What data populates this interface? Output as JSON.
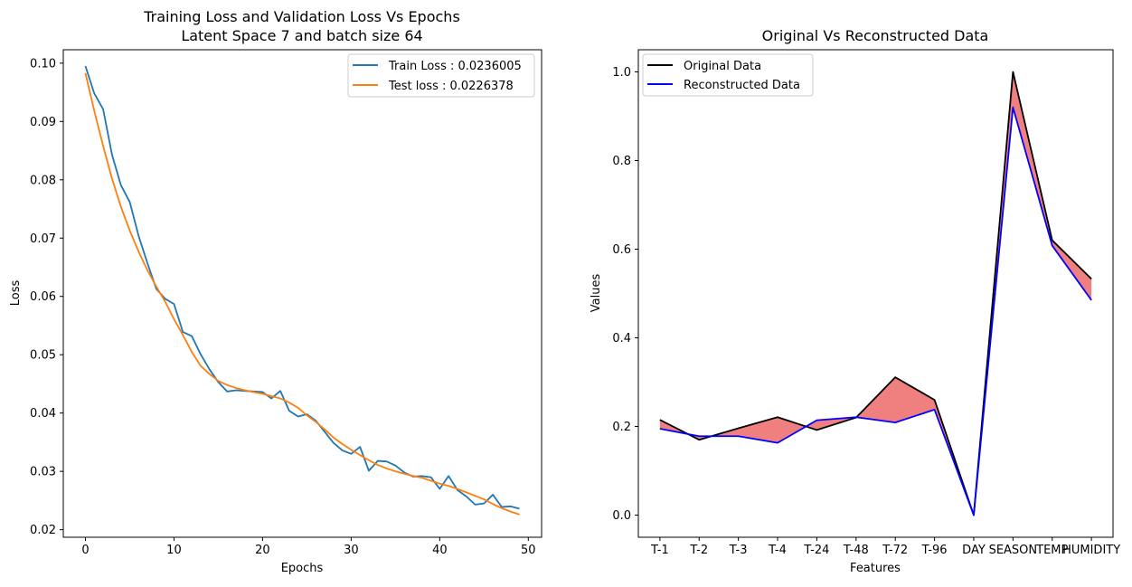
{
  "chart_data": [
    {
      "type": "line",
      "title": "Training Loss and Validation Loss Vs Epochs",
      "subtitle": "Latent Space 7 and batch size 64",
      "xlabel": "Epochs",
      "ylabel": "Loss",
      "xlim": [
        -2.5,
        51.5
      ],
      "ylim": [
        0.0187,
        0.1023
      ],
      "xticks": [
        0,
        10,
        20,
        30,
        40,
        50
      ],
      "xtick_labels": [
        "0",
        "10",
        "20",
        "30",
        "40",
        "50"
      ],
      "yticks": [
        0.02,
        0.03,
        0.04,
        0.05,
        0.06,
        0.07,
        0.08,
        0.09,
        0.1
      ],
      "ytick_labels": [
        "0.02",
        "0.03",
        "0.04",
        "0.05",
        "0.06",
        "0.07",
        "0.08",
        "0.09",
        "0.10"
      ],
      "grid": false,
      "legend_position": "upper right",
      "series": [
        {
          "name": "Train Loss : 0.0236005",
          "color": "#1f77b4",
          "x": [
            0,
            1,
            2,
            3,
            4,
            5,
            6,
            7,
            8,
            9,
            10,
            11,
            12,
            13,
            14,
            15,
            16,
            17,
            18,
            19,
            20,
            21,
            22,
            23,
            24,
            25,
            26,
            27,
            28,
            29,
            30,
            31,
            32,
            33,
            34,
            35,
            36,
            37,
            38,
            39,
            40,
            41,
            42,
            43,
            44,
            45,
            46,
            47,
            48,
            49
          ],
          "values": [
            0.0995,
            0.0948,
            0.0921,
            0.0843,
            0.0791,
            0.0762,
            0.0704,
            0.0657,
            0.0613,
            0.0596,
            0.0587,
            0.0539,
            0.0532,
            0.0501,
            0.0475,
            0.0453,
            0.0437,
            0.0439,
            0.0438,
            0.0437,
            0.0436,
            0.0425,
            0.0438,
            0.0404,
            0.0394,
            0.0398,
            0.0387,
            0.0368,
            0.0349,
            0.0336,
            0.033,
            0.0342,
            0.0301,
            0.0318,
            0.0317,
            0.031,
            0.0298,
            0.0291,
            0.0292,
            0.029,
            0.027,
            0.0292,
            0.0268,
            0.0257,
            0.0243,
            0.0245,
            0.026,
            0.0239,
            0.024,
            0.0236
          ]
        },
        {
          "name": "Test loss : 0.0226378",
          "color": "#ff7f0e",
          "x": [
            0,
            1,
            2,
            3,
            4,
            5,
            6,
            7,
            8,
            9,
            10,
            11,
            12,
            13,
            14,
            15,
            16,
            17,
            18,
            19,
            20,
            21,
            22,
            23,
            24,
            25,
            26,
            27,
            28,
            29,
            30,
            31,
            32,
            33,
            34,
            35,
            36,
            37,
            38,
            39,
            40,
            41,
            42,
            43,
            44,
            45,
            46,
            47,
            48,
            49
          ],
          "values": [
            0.0983,
            0.0918,
            0.0858,
            0.0802,
            0.0754,
            0.0713,
            0.0677,
            0.0645,
            0.0617,
            0.0591,
            0.0561,
            0.0534,
            0.0505,
            0.0481,
            0.0467,
            0.0455,
            0.0448,
            0.0443,
            0.0439,
            0.0436,
            0.0433,
            0.0429,
            0.0425,
            0.0418,
            0.0409,
            0.0396,
            0.0385,
            0.0372,
            0.0358,
            0.0347,
            0.0337,
            0.0328,
            0.0319,
            0.0311,
            0.0305,
            0.03,
            0.0296,
            0.0292,
            0.0289,
            0.0284,
            0.0279,
            0.0275,
            0.027,
            0.0264,
            0.0258,
            0.0252,
            0.0244,
            0.0237,
            0.0231,
            0.0226
          ]
        }
      ]
    },
    {
      "type": "line",
      "title": "Original Vs Reconstructed Data",
      "xlabel": "Features",
      "ylabel": "Values",
      "categories": [
        "T-1",
        "T-2",
        "T-3",
        "T-4",
        "T-24",
        "T-48",
        "T-72",
        "T-96",
        "DAY",
        "SEASON",
        "TEMP",
        "HUMIDITY"
      ],
      "ylim": [
        -0.05,
        1.05
      ],
      "yticks": [
        0.0,
        0.2,
        0.4,
        0.6,
        0.8,
        1.0
      ],
      "ytick_labels": [
        "0.0",
        "0.2",
        "0.4",
        "0.6",
        "0.8",
        "1.0"
      ],
      "grid": false,
      "legend_position": "upper left",
      "fill_between_color": "#f08080",
      "series": [
        {
          "name": "Original Data",
          "color": "#000000",
          "values": [
            0.215,
            0.17,
            0.196,
            0.221,
            0.192,
            0.22,
            0.311,
            0.26,
            0.0,
            1.0,
            0.62,
            0.533
          ]
        },
        {
          "name": "Reconstructed Data",
          "color": "#0000ff",
          "values": [
            0.195,
            0.178,
            0.178,
            0.163,
            0.214,
            0.221,
            0.209,
            0.238,
            0.0,
            0.92,
            0.608,
            0.485
          ]
        }
      ]
    }
  ]
}
